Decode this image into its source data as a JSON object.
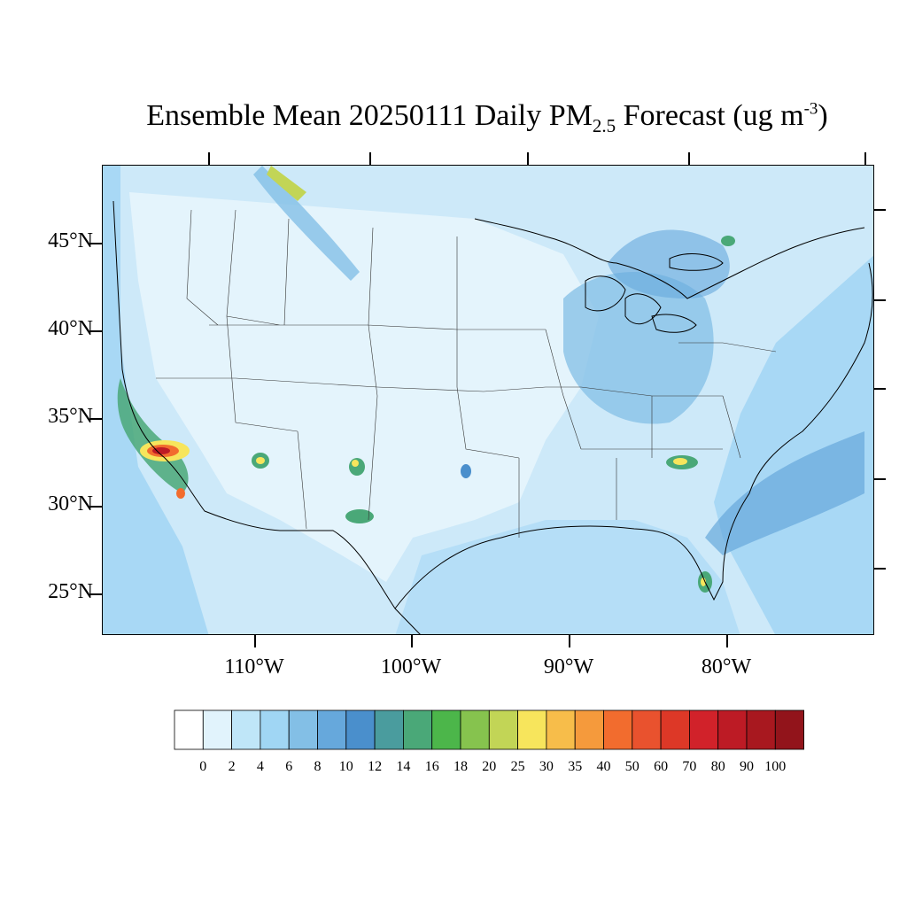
{
  "title": {
    "main": "Ensemble Mean 20250111 Daily PM",
    "subscript": "2.5",
    "after": " Forecast (ug m",
    "superscript": "-3",
    "close": ")"
  },
  "lat_labels": [
    "45°N",
    "40°N",
    "35°N",
    "30°N",
    "25°N"
  ],
  "lon_labels": [
    "110°W",
    "100°W",
    "90°W",
    "80°W"
  ],
  "colorbar": {
    "colors": [
      "#ffffff",
      "#e1f3fc",
      "#bfe6f8",
      "#a0d6f4",
      "#83bfe6",
      "#66a8dc",
      "#4a8fcc",
      "#4a9c9e",
      "#4aa878",
      "#4cb64a",
      "#86c34e",
      "#c2d556",
      "#f7e55c",
      "#f7bd4a",
      "#f59a3c",
      "#f26c2e",
      "#e9522e",
      "#dd3827",
      "#d1222a",
      "#bd1b25",
      "#a8181f",
      "#92141b"
    ],
    "labels": [
      "0",
      "2",
      "4",
      "6",
      "8",
      "10",
      "12",
      "14",
      "16",
      "18",
      "20",
      "25",
      "30",
      "35",
      "40",
      "50",
      "60",
      "70",
      "80",
      "90",
      "100"
    ]
  },
  "map": {
    "background_color": "#d4ecfa",
    "land_light_color": "#e4f4fc",
    "ocean_color": "#a8d8f5",
    "hotspot_colors": [
      "#4a8fcc",
      "#4aa878",
      "#c2d556",
      "#f7e55c",
      "#f26c2e",
      "#bd1b25"
    ]
  }
}
